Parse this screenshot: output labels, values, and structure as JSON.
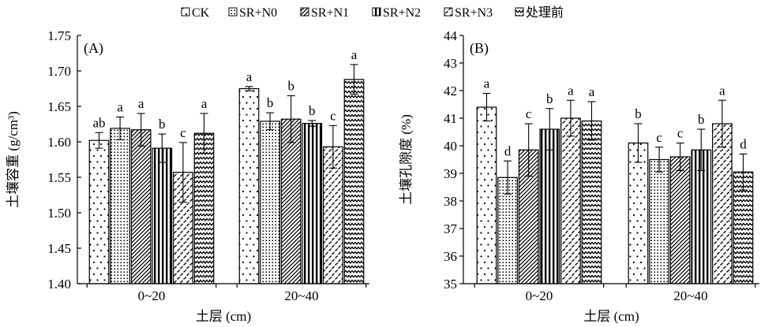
{
  "legend_items": [
    {
      "label": "CK",
      "pattern": "dots"
    },
    {
      "label": "SR+N0",
      "pattern": "dense-dots"
    },
    {
      "label": "SR+N1",
      "pattern": "diagonal"
    },
    {
      "label": "SR+N2",
      "pattern": "vertical"
    },
    {
      "label": "SR+N3",
      "pattern": "dashes"
    },
    {
      "label": "处理前",
      "pattern": "zigzag"
    }
  ],
  "chart_data": [
    {
      "type": "bar",
      "panel_label": "(A)",
      "xlabel": "土层 (cm)",
      "ylabel": "土壤容重 (g/cm³)",
      "ylim": [
        1.4,
        1.75
      ],
      "yticks": [
        "1.40",
        "1.45",
        "1.50",
        "1.55",
        "1.60",
        "1.65",
        "1.70",
        "1.75"
      ],
      "categories": [
        "0~20",
        "20~40"
      ],
      "series": [
        {
          "name": "CK",
          "values": [
            1.602,
            1.675
          ],
          "errors": [
            0.011,
            0.003
          ],
          "letters": [
            "ab",
            "a"
          ]
        },
        {
          "name": "SR+N0",
          "values": [
            1.619,
            1.629
          ],
          "errors": [
            0.016,
            0.012
          ],
          "letters": [
            "a",
            "b"
          ]
        },
        {
          "name": "SR+N1",
          "values": [
            1.617,
            1.632
          ],
          "errors": [
            0.023,
            0.033
          ],
          "letters": [
            "a",
            "b"
          ]
        },
        {
          "name": "SR+N2",
          "values": [
            1.591,
            1.626
          ],
          "errors": [
            0.02,
            0.004
          ],
          "letters": [
            "b",
            "b"
          ]
        },
        {
          "name": "SR+N3",
          "values": [
            1.557,
            1.593
          ],
          "errors": [
            0.042,
            0.03
          ],
          "letters": [
            "c",
            "c"
          ]
        },
        {
          "name": "处理前",
          "values": [
            1.612,
            1.688
          ],
          "errors": [
            0.028,
            0.021
          ],
          "letters": [
            "a",
            "a"
          ]
        }
      ]
    },
    {
      "type": "bar",
      "panel_label": "(B)",
      "xlabel": "土层 (cm)",
      "ylabel": "土壤孔隙度 (%)",
      "ylim": [
        35,
        44
      ],
      "yticks": [
        "35",
        "36",
        "37",
        "38",
        "39",
        "40",
        "41",
        "42",
        "43",
        "44"
      ],
      "categories": [
        "0~20",
        "20~40"
      ],
      "series": [
        {
          "name": "CK",
          "values": [
            41.4,
            40.1
          ],
          "errors": [
            0.5,
            0.7
          ],
          "letters": [
            "a",
            "b"
          ]
        },
        {
          "name": "SR+N0",
          "values": [
            38.85,
            39.5
          ],
          "errors": [
            0.6,
            0.45
          ],
          "letters": [
            "d",
            "c"
          ]
        },
        {
          "name": "SR+N1",
          "values": [
            39.85,
            39.6
          ],
          "errors": [
            0.95,
            0.5
          ],
          "letters": [
            "c",
            "c"
          ]
        },
        {
          "name": "SR+N2",
          "values": [
            40.6,
            39.85
          ],
          "errors": [
            0.75,
            0.75
          ],
          "letters": [
            "b",
            "b"
          ]
        },
        {
          "name": "SR+N3",
          "values": [
            41.0,
            40.8
          ],
          "errors": [
            0.65,
            0.85
          ],
          "letters": [
            "a",
            "a"
          ]
        },
        {
          "name": "处理前",
          "values": [
            40.9,
            39.05
          ],
          "errors": [
            0.7,
            0.65
          ],
          "letters": [
            "a",
            "d"
          ]
        }
      ]
    }
  ]
}
